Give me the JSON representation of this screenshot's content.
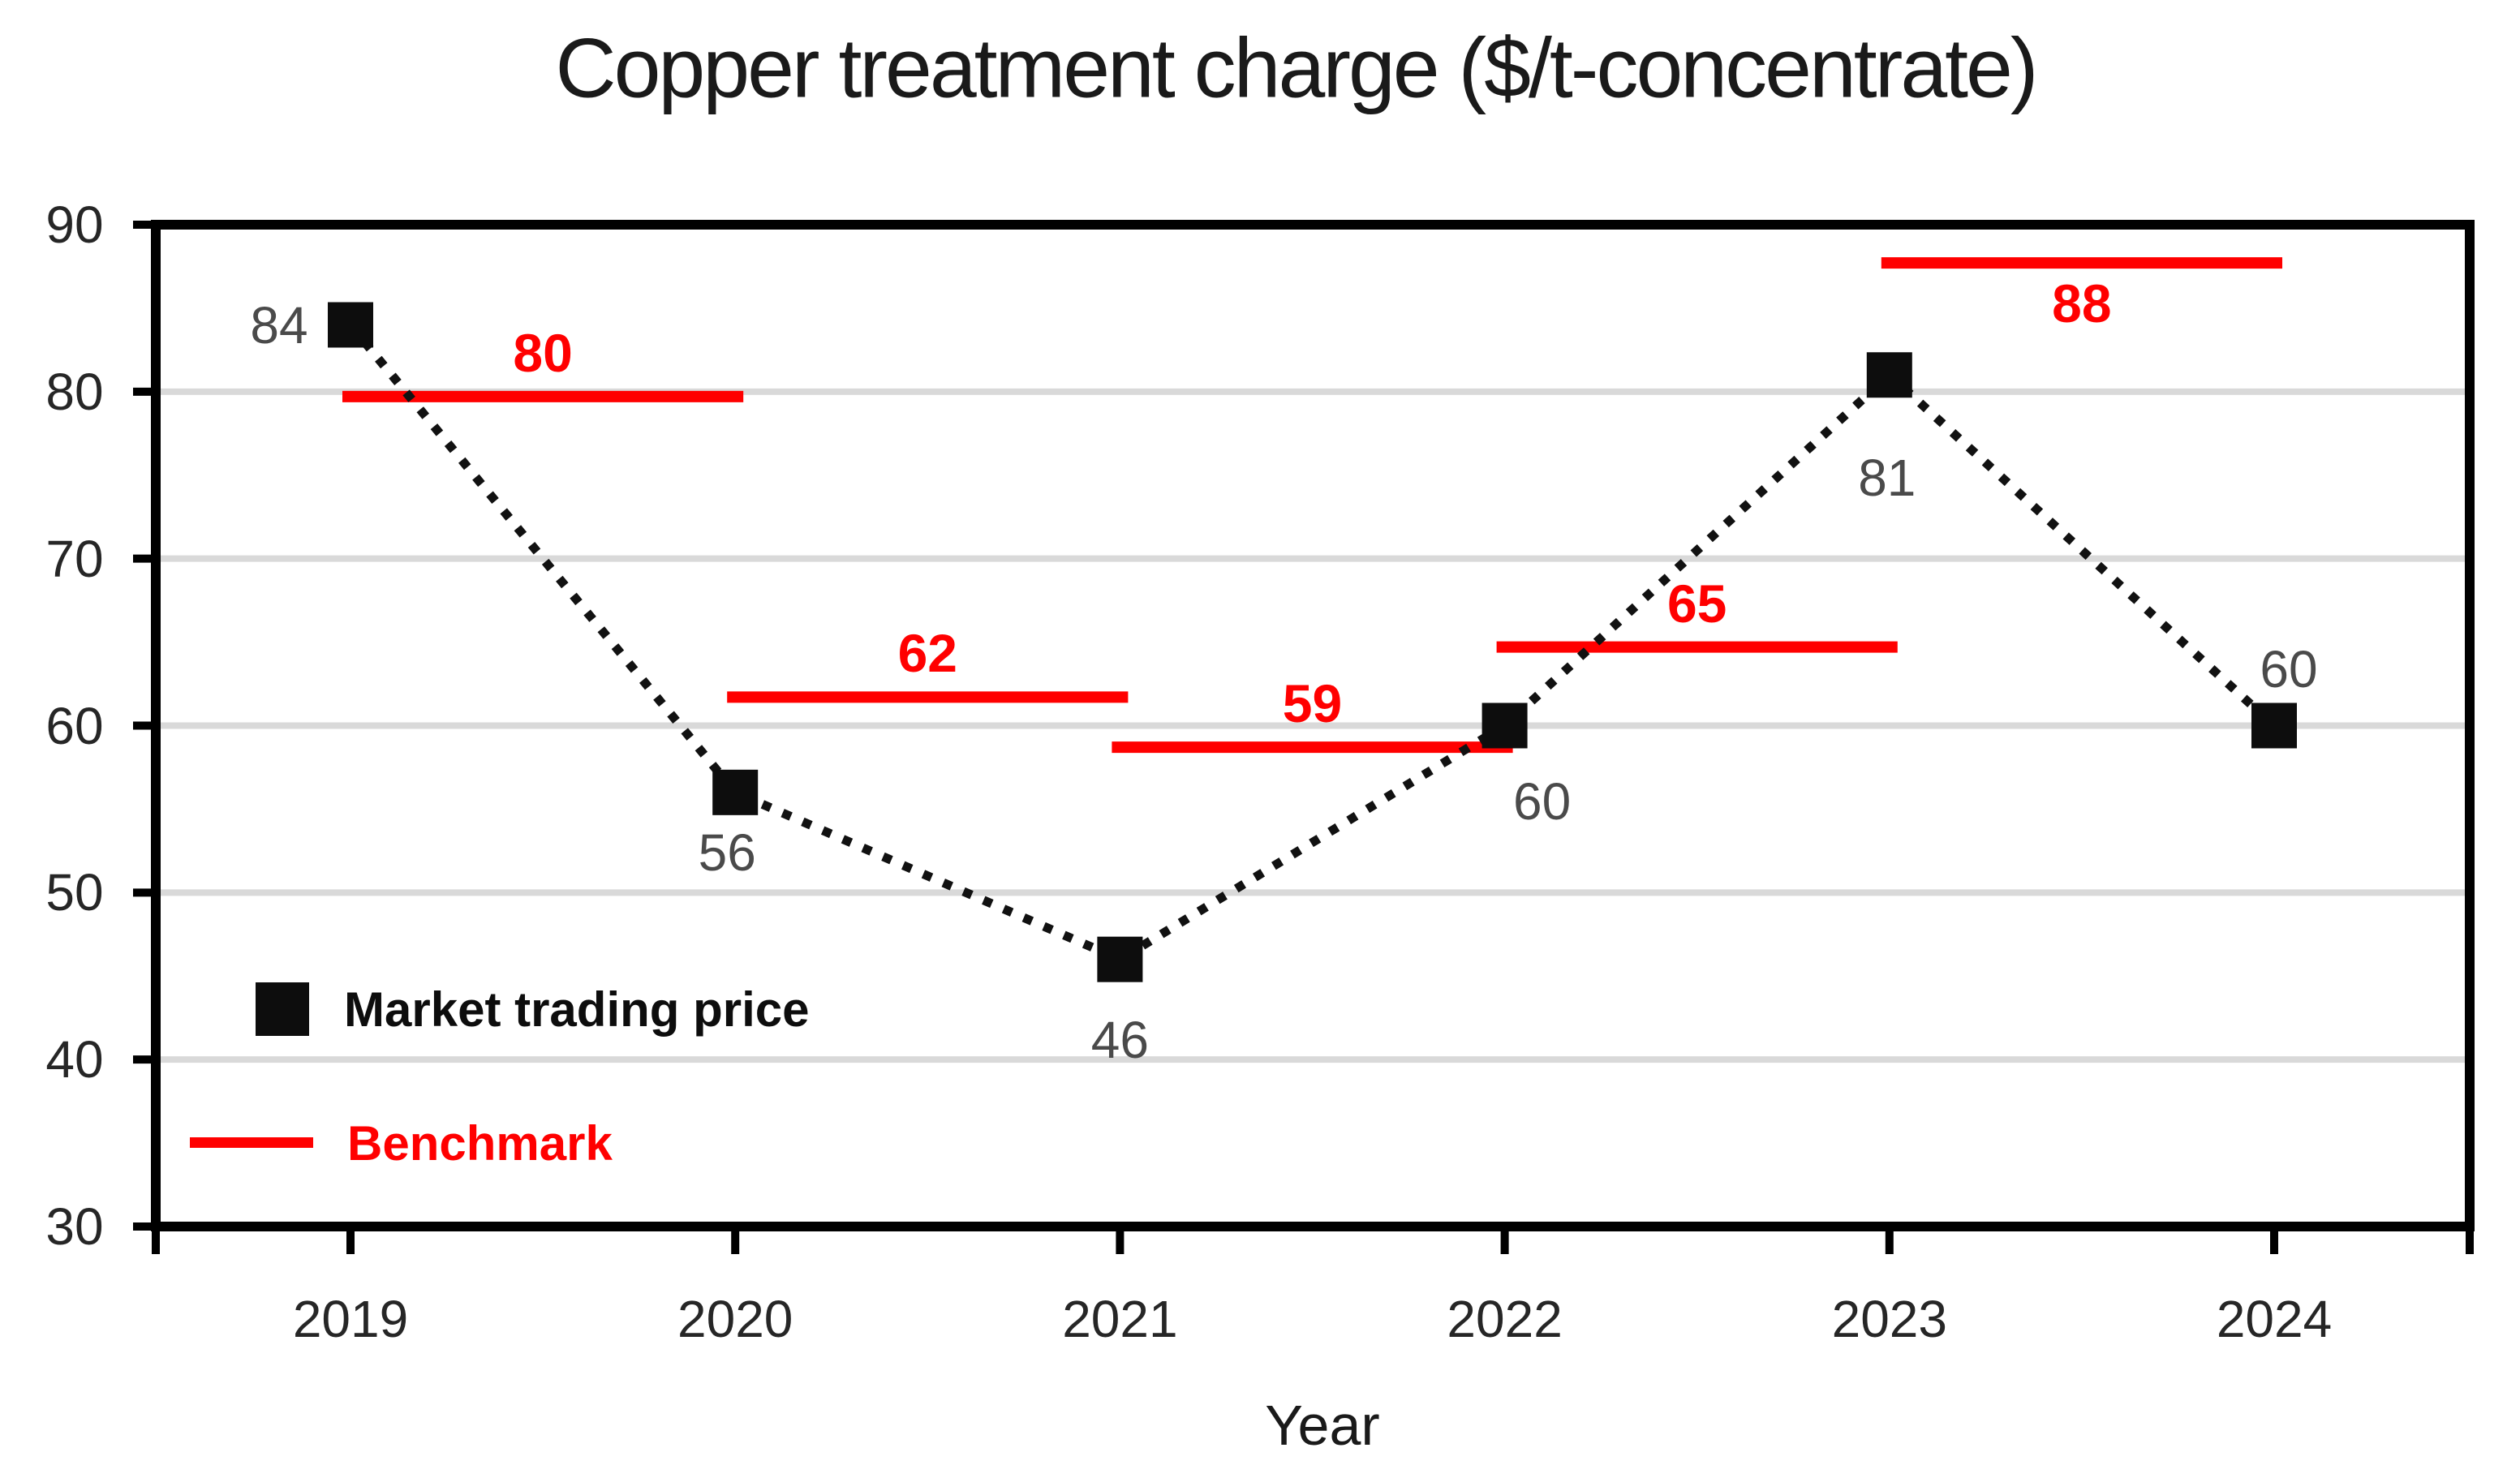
{
  "chart_data": {
    "type": "line",
    "title": "Copper treatment charge ($/t-concentrate)",
    "xlabel": "Year",
    "categories": [
      "2019",
      "2020",
      "2021",
      "2022",
      "2023",
      "2024"
    ],
    "series": [
      {
        "name": "Market trading price",
        "style": "black-square-markers-with-dotted-connector",
        "color": "#000000",
        "values": [
          84,
          56,
          46,
          60,
          81,
          60
        ]
      },
      {
        "name": "Benchmark",
        "style": "horizontal-red-segments-spanning-year-to-next-year",
        "color": "#ff0000",
        "values": [
          80,
          62,
          59,
          65,
          88
        ]
      }
    ],
    "ylim": [
      30,
      90
    ],
    "y_ticks": [
      "90",
      "80",
      "70",
      "60",
      "50",
      "40",
      "30"
    ],
    "grid": true,
    "gridline_color": "#d9d9d9",
    "legend_position": "inside-bottom-left"
  },
  "legend": {
    "market_label": "Market trading price",
    "benchmark_label": "Benchmark"
  },
  "colors": {
    "market": "#0d0d0d",
    "benchmark": "#ff0000",
    "point_label": "#4a4a4a",
    "axis_label": "#262626",
    "gridline": "#d9d9d9"
  }
}
